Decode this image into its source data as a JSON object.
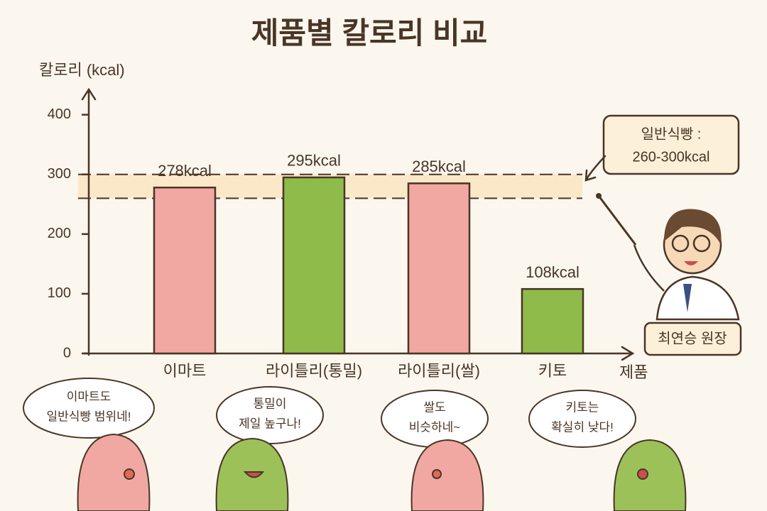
{
  "chart_data": {
    "type": "bar",
    "title": "제품별 칼로리 비교",
    "y_label": "칼로리 (kcal)",
    "x_label": "제품",
    "categories": [
      "이마트",
      "라이틀리(통밀)",
      "라이틀리(쌀)",
      "키토"
    ],
    "values": [
      278,
      295,
      285,
      108
    ],
    "value_labels": [
      "278kcal",
      "295kcal",
      "285kcal",
      "108kcal"
    ],
    "colors": [
      "#f2a8a2",
      "#8fbb4a",
      "#f2a8a2",
      "#8fbb4a"
    ],
    "ylim": [
      0,
      440
    ],
    "yticks": [
      0,
      100,
      200,
      300,
      400
    ],
    "reference_band": [
      260,
      300
    ],
    "reference_note": [
      "일반식빵 :",
      "260-300kcal"
    ],
    "speaker": "최연승 원장",
    "bubbles": [
      [
        "이마트도",
        "일반식빵 범위네!"
      ],
      [
        "통밀이",
        "제일 높구나!"
      ],
      [
        "쌀도",
        "비슷하네~"
      ],
      [
        "키토는",
        "확실히 낮다!"
      ]
    ]
  }
}
